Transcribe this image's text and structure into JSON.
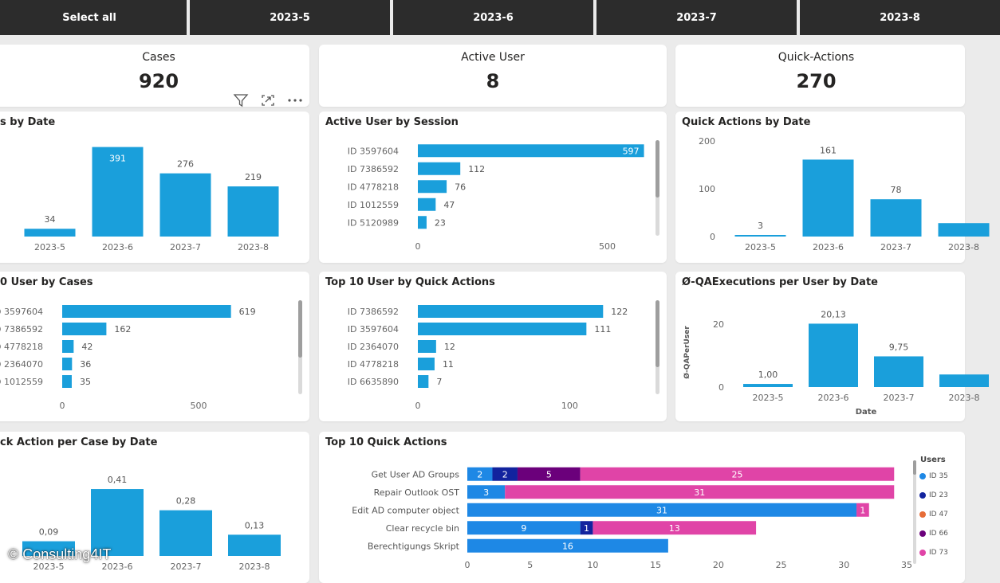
{
  "colors": {
    "bar": "#1a9fdb",
    "slicer_bg": "#2c2c2c",
    "page_bg": "#ebebeb",
    "stack": [
      "#1e88e5",
      "#12239e",
      "#e66c37",
      "#6b007b",
      "#e044a7"
    ]
  },
  "slicer": {
    "tabs": [
      {
        "label": "Select all"
      },
      {
        "label": "2023-5"
      },
      {
        "label": "2023-6"
      },
      {
        "label": "2023-7"
      },
      {
        "label": "2023-8"
      }
    ]
  },
  "kpis": {
    "cases": {
      "label": "Cases",
      "value": "920"
    },
    "active_user": {
      "label": "Active User",
      "value": "8"
    },
    "quick_actions": {
      "label": "Quick-Actions",
      "value": "270"
    }
  },
  "visual_header_icons": [
    "filter-icon",
    "focus-mode-icon",
    "more-options-icon"
  ],
  "chart_data": [
    {
      "id": "cases_by_date",
      "type": "bar",
      "title": "s by Date",
      "categories": [
        "2023-5",
        "2023-6",
        "2023-7",
        "2023-8"
      ],
      "values": [
        34,
        391,
        276,
        219
      ],
      "labels": [
        "34",
        "391",
        "276",
        "219"
      ],
      "ylim": [
        0,
        400
      ]
    },
    {
      "id": "active_user_by_session",
      "type": "bar",
      "orientation": "horizontal",
      "title": "Active User by Session",
      "categories": [
        "ID 3597604",
        "ID 7386592",
        "ID 4778218",
        "ID 1012559",
        "ID 5120989"
      ],
      "values": [
        597,
        112,
        76,
        47,
        23
      ],
      "labels": [
        "597",
        "112",
        "76",
        "47",
        "23"
      ],
      "xlim": [
        0,
        600
      ],
      "xticks": [
        "0",
        "500"
      ],
      "xtick_values": [
        0,
        500
      ]
    },
    {
      "id": "quick_actions_by_date",
      "type": "bar",
      "title": "Quick Actions by Date",
      "categories": [
        "2023-5",
        "2023-6",
        "2023-7",
        "2023-8"
      ],
      "values": [
        3,
        161,
        78,
        28
      ],
      "labels": [
        "3",
        "161",
        "78",
        ""
      ],
      "ylim": [
        0,
        200
      ],
      "yticks": [
        "0",
        "100",
        "200"
      ],
      "ytick_values": [
        0,
        100,
        200
      ]
    },
    {
      "id": "top10_user_by_cases",
      "type": "bar",
      "orientation": "horizontal",
      "title": "0 User by Cases",
      "categories": [
        "D 3597604",
        "D 7386592",
        "D 4778218",
        "D 2364070",
        "D 1012559"
      ],
      "values": [
        619,
        162,
        42,
        36,
        35
      ],
      "labels": [
        "619",
        "162",
        "42",
        "36",
        "35"
      ],
      "xlim": [
        0,
        620
      ],
      "xticks": [
        "0",
        "500"
      ],
      "xtick_values": [
        0,
        500
      ]
    },
    {
      "id": "top10_user_by_quick_actions",
      "type": "bar",
      "orientation": "horizontal",
      "title": "Top 10 User by Quick Actions",
      "categories": [
        "ID 7386592",
        "ID 3597604",
        "ID 2364070",
        "ID 4778218",
        "ID 6635890"
      ],
      "values": [
        122,
        111,
        12,
        11,
        7
      ],
      "labels": [
        "122",
        "111",
        "12",
        "11",
        "7"
      ],
      "xlim": [
        0,
        125
      ],
      "xticks": [
        "0",
        "100"
      ],
      "xtick_values": [
        0,
        100
      ]
    },
    {
      "id": "qa_executions_per_user",
      "type": "bar",
      "title": "Ø-QAExecutions per User by Date",
      "categories": [
        "2023-5",
        "2023-6",
        "2023-7",
        "2023-8"
      ],
      "values": [
        1.0,
        20.13,
        9.75,
        4.0
      ],
      "labels": [
        "1,00",
        "20,13",
        "9,75",
        ""
      ],
      "ylim": [
        0,
        22
      ],
      "yticks": [
        "0",
        "20"
      ],
      "ytick_values": [
        0,
        20
      ],
      "xlabel": "Date",
      "ylabel": "Ø-QAPerUser"
    },
    {
      "id": "quick_action_per_case",
      "type": "bar",
      "title": "ck Action per Case by Date",
      "categories": [
        "2023-5",
        "2023-6",
        "2023-7",
        "2023-8"
      ],
      "values": [
        0.09,
        0.41,
        0.28,
        0.13
      ],
      "labels": [
        "0,09",
        "0,41",
        "0,28",
        "0,13"
      ],
      "ylim": [
        0,
        0.42
      ]
    },
    {
      "id": "top10_quick_actions",
      "type": "bar",
      "orientation": "horizontal",
      "stacked": true,
      "title": "Top 10 Quick Actions",
      "categories": [
        "Get User AD Groups",
        "Repair Outlook OST",
        "Edit AD computer object",
        "Clear recycle bin",
        "Berechtigungs Skript"
      ],
      "xlim": [
        0,
        35
      ],
      "xticks": [
        "0",
        "5",
        "10",
        "15",
        "20",
        "25",
        "30",
        "35"
      ],
      "xtick_values": [
        0,
        5,
        10,
        15,
        20,
        25,
        30,
        35
      ],
      "legend_title": "Users",
      "series": [
        {
          "name": "ID 35",
          "values": [
            2,
            3,
            31,
            9,
            16
          ]
        },
        {
          "name": "ID 23",
          "values": [
            2,
            0,
            0,
            1,
            0
          ]
        },
        {
          "name": "ID 47",
          "values": [
            0,
            0,
            0,
            0,
            0
          ]
        },
        {
          "name": "ID 66",
          "values": [
            5,
            0,
            0,
            0,
            0
          ]
        },
        {
          "name": "ID 73",
          "values": [
            25,
            31,
            1,
            13,
            0
          ]
        }
      ]
    }
  ],
  "watermark": "© Consulting4IT"
}
